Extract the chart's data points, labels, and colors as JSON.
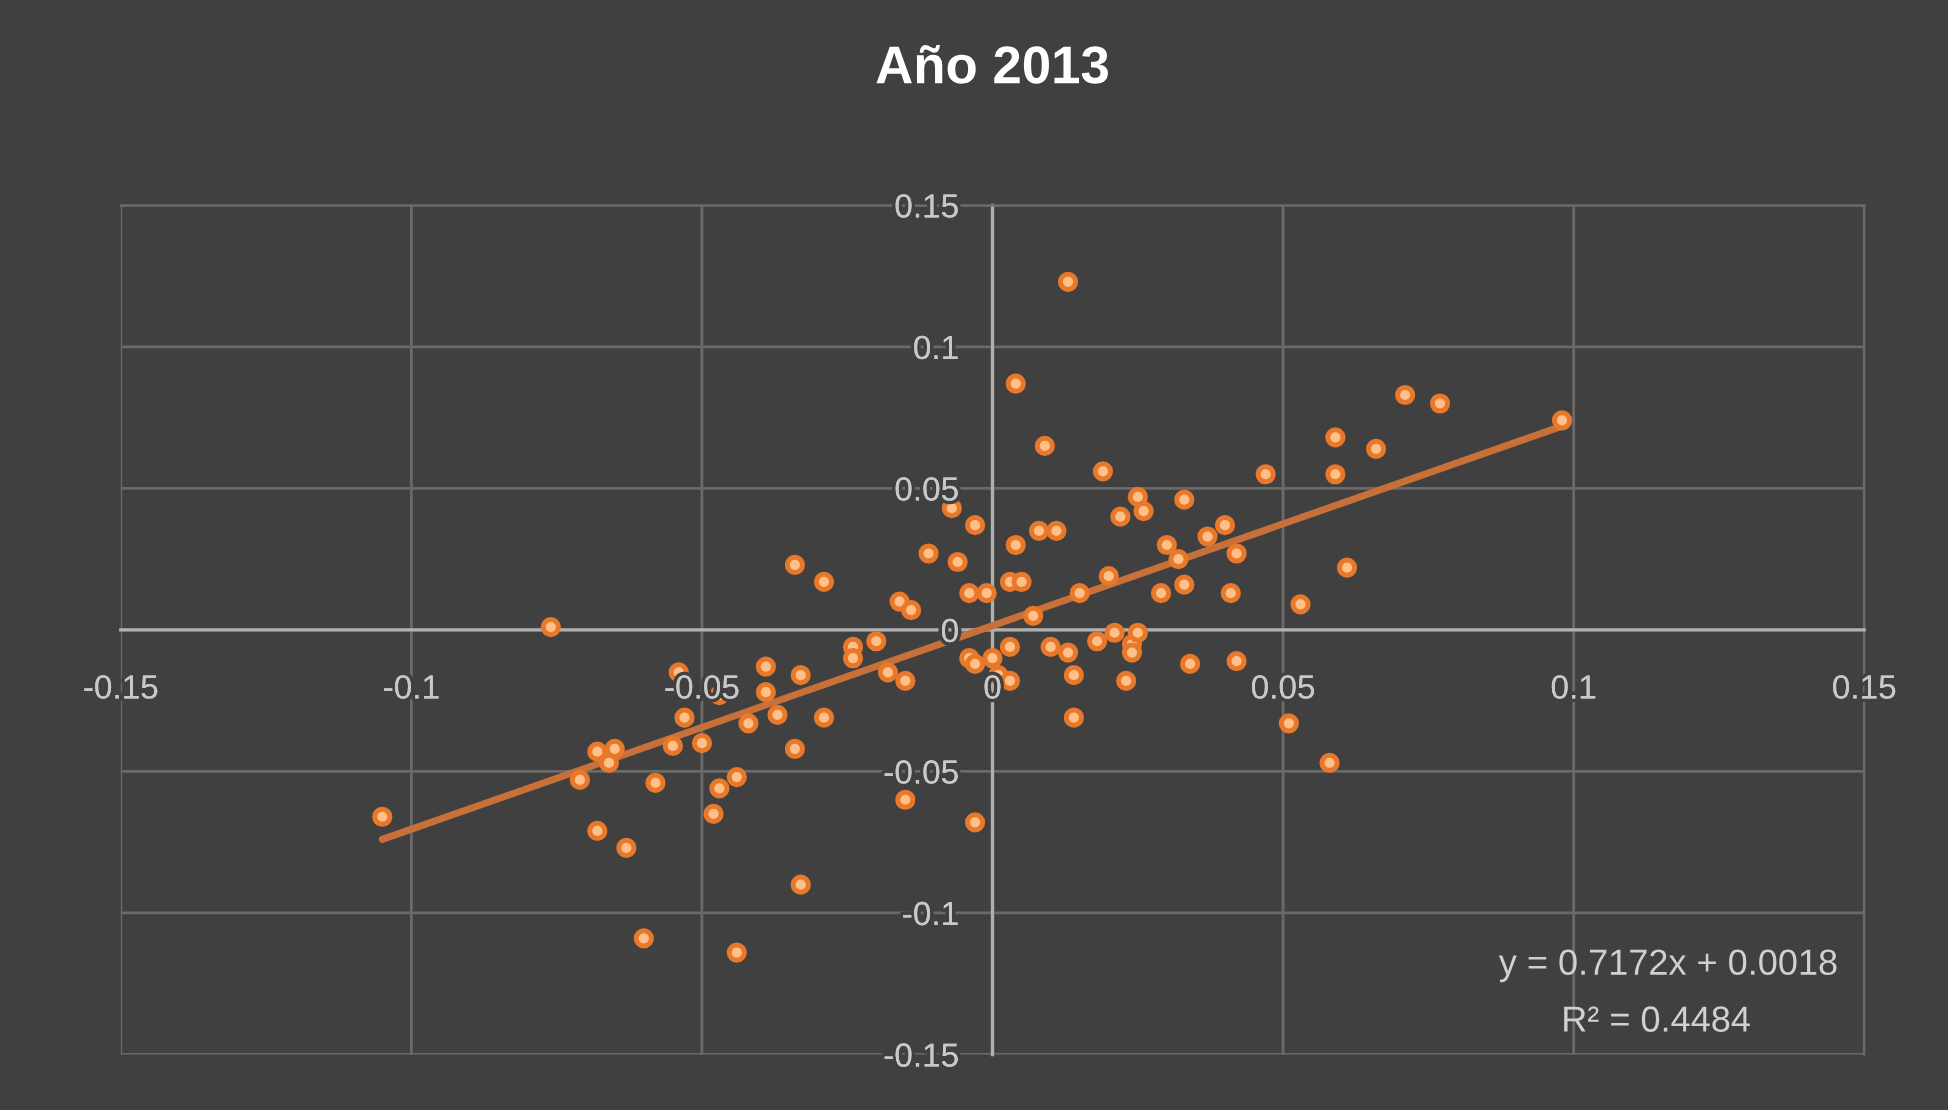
{
  "chart_data": {
    "type": "scatter",
    "title": "Año 2013",
    "xlim": [
      -0.15,
      0.15
    ],
    "ylim": [
      -0.15,
      0.15
    ],
    "xticks": [
      -0.15,
      -0.1,
      -0.05,
      0,
      0.05,
      0.1,
      0.15
    ],
    "yticks": [
      -0.15,
      -0.1,
      -0.05,
      0,
      0.05,
      0.1,
      0.15
    ],
    "grid": true,
    "marker": "circle",
    "annotations": [
      "y = 0.7172x + 0.0018",
      "R² = 0.4484"
    ],
    "series": [
      {
        "type": "scatter",
        "color": "#ffc08a",
        "x": [
          -0.105,
          -0.076,
          -0.068,
          -0.065,
          -0.066,
          -0.071,
          -0.058,
          -0.068,
          -0.063,
          -0.06,
          -0.044,
          -0.033,
          -0.015,
          -0.003,
          -0.054,
          -0.053,
          -0.055,
          -0.05,
          -0.047,
          -0.042,
          -0.047,
          -0.044,
          -0.048,
          -0.039,
          -0.039,
          -0.037,
          -0.033,
          -0.029,
          -0.034,
          -0.034,
          -0.029,
          -0.024,
          -0.024,
          -0.02,
          -0.018,
          -0.015,
          -0.016,
          -0.014,
          -0.004,
          -0.001,
          -0.004,
          -0.003,
          0.013,
          0.004,
          0.009,
          0.019,
          0.047,
          0.059,
          0.059,
          -0.007,
          -0.003,
          -0.011,
          -0.006,
          0.004,
          0.008,
          0.011,
          0.003,
          0.005,
          0.007,
          0.015,
          0.02,
          0.025,
          0.026,
          0.022,
          0.033,
          0.037,
          0.04,
          0.042,
          0.03,
          0.032,
          0.033,
          0.029,
          0.041,
          0.053,
          0.0,
          0.003,
          0.001,
          0.003,
          0.01,
          0.013,
          0.014,
          0.018,
          0.021,
          0.024,
          0.025,
          0.024,
          0.023,
          0.034,
          0.042,
          0.061,
          0.014,
          0.051,
          0.058,
          0.071,
          0.077,
          0.098,
          0.066
        ],
        "values": [
          -0.066,
          0.001,
          -0.043,
          -0.042,
          -0.047,
          -0.053,
          -0.054,
          -0.071,
          -0.077,
          -0.109,
          -0.114,
          -0.09,
          -0.06,
          -0.068,
          -0.015,
          -0.031,
          -0.041,
          -0.04,
          -0.023,
          -0.033,
          -0.056,
          -0.052,
          -0.065,
          -0.013,
          -0.022,
          -0.03,
          -0.016,
          -0.031,
          -0.042,
          0.023,
          0.017,
          -0.006,
          -0.01,
          -0.004,
          -0.015,
          -0.018,
          0.01,
          0.007,
          0.013,
          0.013,
          -0.01,
          -0.012,
          0.123,
          0.087,
          0.065,
          0.056,
          0.055,
          0.055,
          0.068,
          0.043,
          0.037,
          0.027,
          0.024,
          0.03,
          0.035,
          0.035,
          0.017,
          0.017,
          0.005,
          0.013,
          0.019,
          0.047,
          0.042,
          0.04,
          0.046,
          0.033,
          0.037,
          0.027,
          0.03,
          0.025,
          0.016,
          0.013,
          0.013,
          0.009,
          -0.01,
          -0.006,
          -0.016,
          -0.018,
          -0.006,
          -0.008,
          -0.016,
          -0.004,
          -0.001,
          -0.005,
          -0.001,
          -0.008,
          -0.018,
          -0.012,
          -0.011,
          0.022,
          -0.031,
          -0.033,
          -0.047,
          0.083,
          0.08,
          0.074,
          0.064
        ]
      },
      {
        "type": "line",
        "color": "#c8703a",
        "marker": "none",
        "x": [
          -0.105,
          0.098
        ],
        "values": [
          -0.074,
          0.072
        ]
      }
    ]
  }
}
